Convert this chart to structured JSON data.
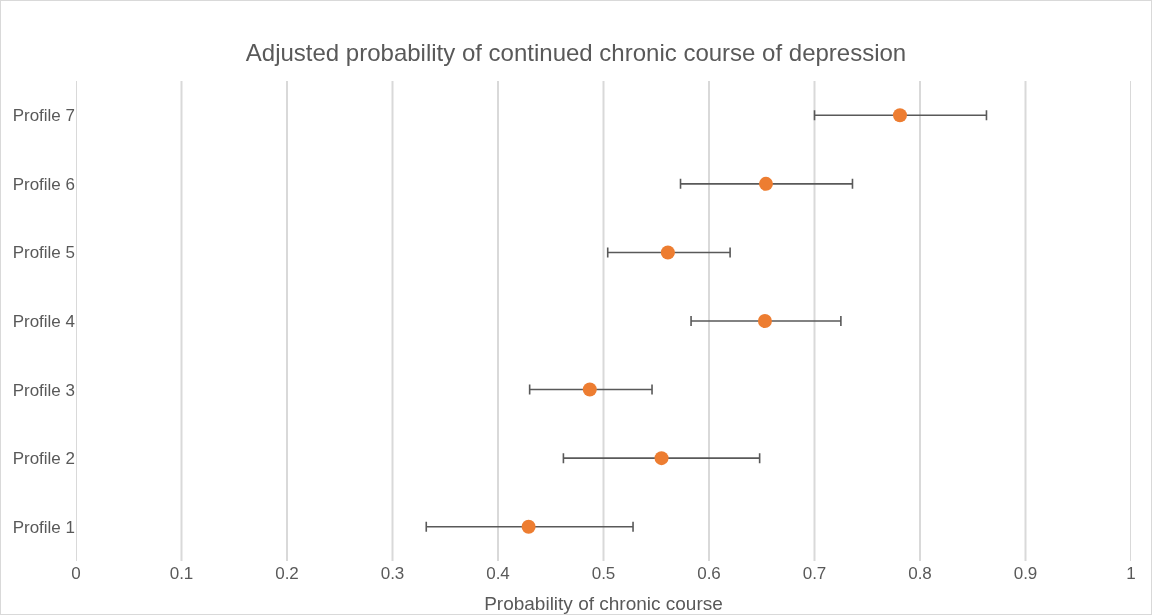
{
  "chart_data": {
    "type": "scatter",
    "orientation": "horizontal",
    "title": "Adjusted probability of continued chronic course of depression",
    "xlabel": "Probability of chronic course",
    "categories": [
      "Profile 7",
      "Profile 6",
      "Profile 5",
      "Profile 4",
      "Profile 3",
      "Profile 2",
      "Profile 1"
    ],
    "values": [
      0.781,
      0.654,
      0.561,
      0.653,
      0.487,
      0.555,
      0.429
    ],
    "errors": [
      [
        0.7,
        0.863
      ],
      [
        0.573,
        0.736
      ],
      [
        0.504,
        0.62
      ],
      [
        0.583,
        0.725
      ],
      [
        0.43,
        0.546
      ],
      [
        0.462,
        0.648
      ],
      [
        0.332,
        0.528
      ]
    ],
    "color": "#ed7d31",
    "marker": "circle",
    "xlim": [
      0,
      1
    ],
    "xticks": [
      0,
      0.1,
      0.2,
      0.3,
      0.4,
      0.5,
      0.6,
      0.7,
      0.8,
      0.9,
      1
    ],
    "grid": "x"
  }
}
